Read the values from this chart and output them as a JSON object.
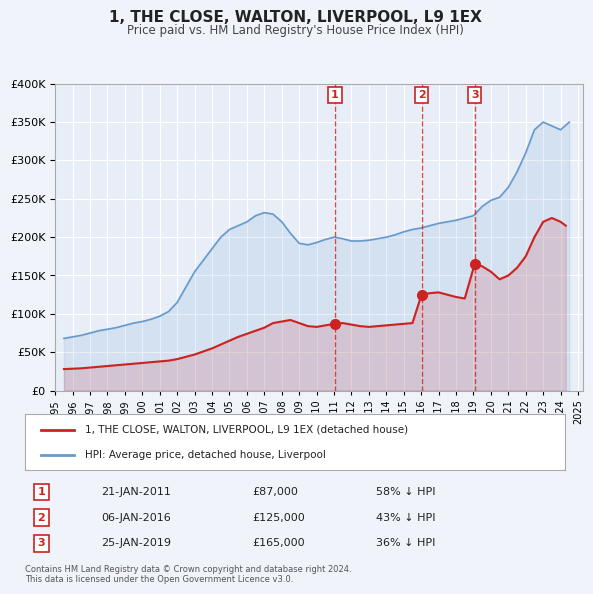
{
  "title": "1, THE CLOSE, WALTON, LIVERPOOL, L9 1EX",
  "subtitle": "Price paid vs. HM Land Registry's House Price Index (HPI)",
  "bg_color": "#f0f4fa",
  "plot_bg_color": "#e8eef8",
  "grid_color": "#ffffff",
  "red_line_label": "1, THE CLOSE, WALTON, LIVERPOOL, L9 1EX (detached house)",
  "blue_line_label": "HPI: Average price, detached house, Liverpool",
  "footnote": "Contains HM Land Registry data © Crown copyright and database right 2024.\nThis data is licensed under the Open Government Licence v3.0.",
  "sales": [
    {
      "num": 1,
      "date": "21-JAN-2011",
      "price": "£87,000",
      "pct": "58% ↓ HPI",
      "x_year": 2011.05
    },
    {
      "num": 2,
      "date": "06-JAN-2016",
      "price": "£125,000",
      "pct": "43% ↓ HPI",
      "x_year": 2016.02
    },
    {
      "num": 3,
      "date": "25-JAN-2019",
      "price": "£165,000",
      "pct": "36% ↓ HPI",
      "x_year": 2019.07
    }
  ],
  "ylim": [
    0,
    400000
  ],
  "xlim_start": 1995.0,
  "xlim_end": 2025.3,
  "hpi_data": {
    "years": [
      1995.5,
      1996.0,
      1996.5,
      1997.0,
      1997.5,
      1998.0,
      1998.5,
      1999.0,
      1999.5,
      2000.0,
      2000.5,
      2001.0,
      2001.5,
      2002.0,
      2002.5,
      2003.0,
      2003.5,
      2004.0,
      2004.5,
      2005.0,
      2005.5,
      2006.0,
      2006.5,
      2007.0,
      2007.5,
      2008.0,
      2008.5,
      2009.0,
      2009.5,
      2010.0,
      2010.5,
      2011.0,
      2011.5,
      2012.0,
      2012.5,
      2013.0,
      2013.5,
      2014.0,
      2014.5,
      2015.0,
      2015.5,
      2016.0,
      2016.5,
      2017.0,
      2017.5,
      2018.0,
      2018.5,
      2019.0,
      2019.5,
      2020.0,
      2020.5,
      2021.0,
      2021.5,
      2022.0,
      2022.5,
      2023.0,
      2023.5,
      2024.0,
      2024.5
    ],
    "values": [
      68000,
      70000,
      72000,
      75000,
      78000,
      80000,
      82000,
      85000,
      88000,
      90000,
      93000,
      97000,
      103000,
      115000,
      135000,
      155000,
      170000,
      185000,
      200000,
      210000,
      215000,
      220000,
      228000,
      232000,
      230000,
      220000,
      205000,
      192000,
      190000,
      193000,
      197000,
      200000,
      198000,
      195000,
      195000,
      196000,
      198000,
      200000,
      203000,
      207000,
      210000,
      212000,
      215000,
      218000,
      220000,
      222000,
      225000,
      228000,
      240000,
      248000,
      252000,
      265000,
      285000,
      310000,
      340000,
      350000,
      345000,
      340000,
      350000
    ]
  },
  "red_data": {
    "years": [
      1995.5,
      1996.0,
      1996.5,
      1997.0,
      1997.5,
      1998.0,
      1998.5,
      1999.0,
      1999.5,
      2000.0,
      2000.5,
      2001.0,
      2001.5,
      2002.0,
      2002.5,
      2003.0,
      2003.5,
      2004.0,
      2004.5,
      2005.0,
      2005.5,
      2006.0,
      2006.5,
      2007.0,
      2007.5,
      2008.0,
      2008.5,
      2009.0,
      2009.5,
      2010.0,
      2010.5,
      2011.05,
      2011.5,
      2012.0,
      2012.5,
      2013.0,
      2013.5,
      2014.0,
      2014.5,
      2015.0,
      2015.5,
      2016.02,
      2016.5,
      2017.0,
      2017.5,
      2018.0,
      2018.5,
      2019.07,
      2019.5,
      2020.0,
      2020.5,
      2021.0,
      2021.5,
      2022.0,
      2022.5,
      2023.0,
      2023.5,
      2024.0,
      2024.3
    ],
    "values": [
      28000,
      28500,
      29000,
      30000,
      31000,
      32000,
      33000,
      34000,
      35000,
      36000,
      37000,
      38000,
      39000,
      41000,
      44000,
      47000,
      51000,
      55000,
      60000,
      65000,
      70000,
      74000,
      78000,
      82000,
      88000,
      90000,
      92000,
      88000,
      84000,
      83000,
      85000,
      87000,
      88000,
      86000,
      84000,
      83000,
      84000,
      85000,
      86000,
      87000,
      88000,
      125000,
      127000,
      128000,
      125000,
      122000,
      120000,
      165000,
      162000,
      155000,
      145000,
      150000,
      160000,
      175000,
      200000,
      220000,
      225000,
      220000,
      215000
    ]
  }
}
